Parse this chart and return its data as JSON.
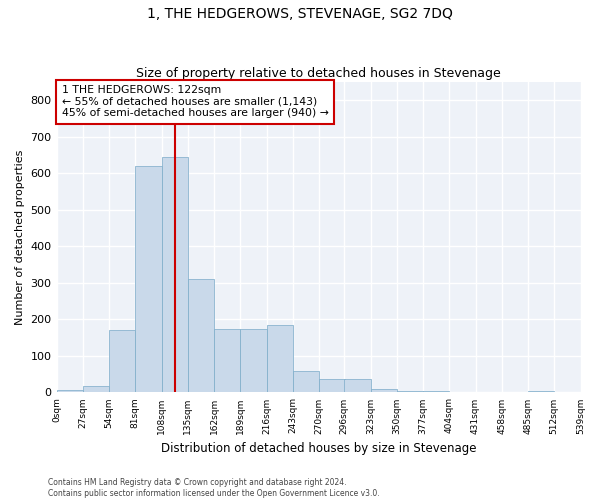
{
  "title": "1, THE HEDGEROWS, STEVENAGE, SG2 7DQ",
  "subtitle": "Size of property relative to detached houses in Stevenage",
  "xlabel": "Distribution of detached houses by size in Stevenage",
  "ylabel": "Number of detached properties",
  "bar_color": "#c9d9ea",
  "bar_edge_color": "#7aaac8",
  "bg_color": "#eef2f8",
  "grid_color": "#ffffff",
  "property_line_x": 122,
  "property_line_color": "#cc0000",
  "annotation_text": "1 THE HEDGEROWS: 122sqm\n← 55% of detached houses are smaller (1,143)\n45% of semi-detached houses are larger (940) →",
  "annotation_box_color": "#cc0000",
  "bin_edges": [
    0,
    27,
    54,
    81,
    108,
    135,
    162,
    189,
    216,
    243,
    270,
    296,
    323,
    350,
    377,
    404,
    431,
    458,
    485,
    512,
    539
  ],
  "bar_heights": [
    8,
    18,
    170,
    620,
    645,
    310,
    175,
    175,
    185,
    60,
    38,
    38,
    10,
    4,
    4,
    0,
    0,
    0,
    5,
    0
  ],
  "ylim": [
    0,
    850
  ],
  "yticks": [
    0,
    100,
    200,
    300,
    400,
    500,
    600,
    700,
    800
  ],
  "footnote": "Contains HM Land Registry data © Crown copyright and database right 2024.\nContains public sector information licensed under the Open Government Licence v3.0."
}
